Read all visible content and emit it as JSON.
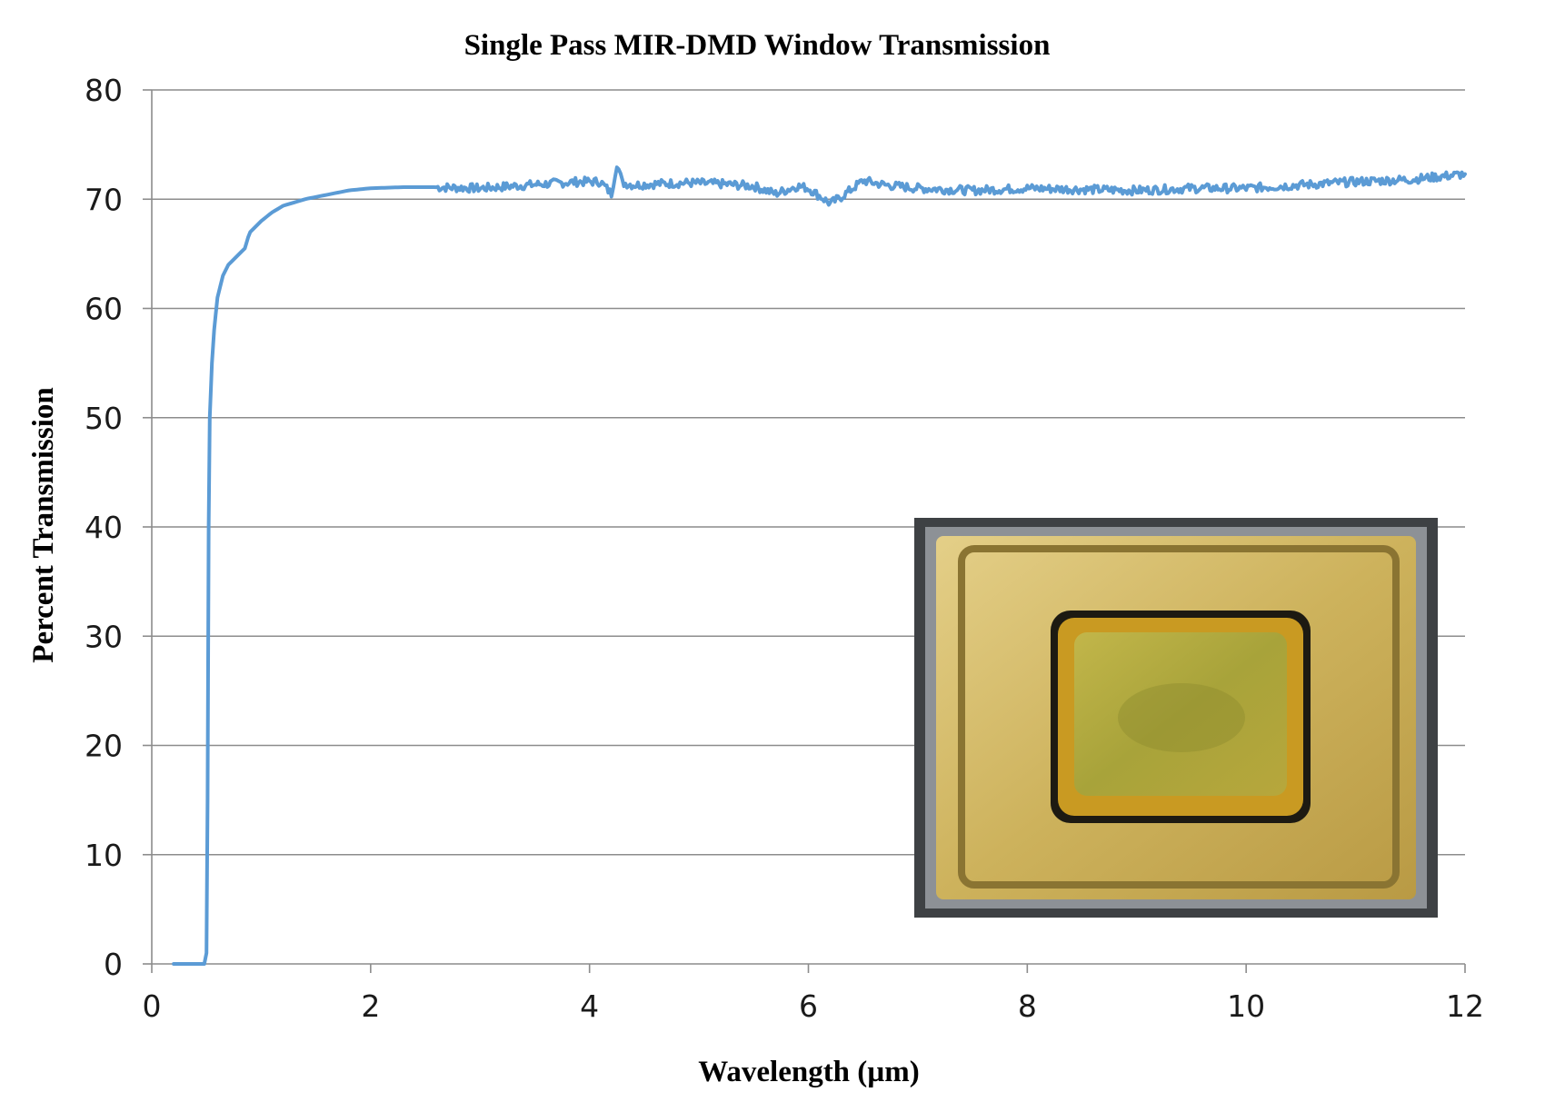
{
  "chart_data": {
    "type": "line",
    "title": "Single Pass MIR-DMD Window Transmission",
    "xlabel": "Wavelength (µm)",
    "ylabel": "Percent Transmission",
    "xlim": [
      0,
      12
    ],
    "ylim": [
      0,
      80
    ],
    "xticks": [
      0,
      2,
      4,
      6,
      8,
      10,
      12
    ],
    "yticks": [
      0,
      10,
      20,
      30,
      40,
      50,
      60,
      70,
      80
    ],
    "grid": "horizontal",
    "legend": "none",
    "series": [
      {
        "color": "#5b9bd5",
        "x": [
          0.2,
          0.48,
          0.5,
          0.51,
          0.52,
          0.53,
          0.55,
          0.57,
          0.6,
          0.65,
          0.7,
          0.8,
          0.85,
          0.88,
          0.9,
          1.0,
          1.1,
          1.2,
          1.4,
          1.6,
          1.8,
          2.0,
          2.3,
          2.6,
          3.0,
          3.3,
          3.6,
          3.9,
          4.1,
          4.2,
          4.25,
          4.3,
          4.4,
          4.6,
          4.9,
          5.2,
          5.5,
          5.7,
          5.9,
          6.0,
          6.2,
          6.3,
          6.5,
          6.7,
          7.0,
          7.5,
          8.0,
          8.5,
          9.0,
          9.5,
          10.0,
          10.5,
          11.0,
          11.5,
          11.8,
          12.0
        ],
        "y": [
          0,
          0,
          1,
          15,
          40,
          50,
          55,
          58,
          61,
          63,
          64,
          65,
          65.5,
          66.5,
          67,
          68,
          68.8,
          69.4,
          70.0,
          70.4,
          70.8,
          71.0,
          71.1,
          71.1,
          71.0,
          71.2,
          71.4,
          71.6,
          71.6,
          70.5,
          73.3,
          71.5,
          71.3,
          71.4,
          71.5,
          71.4,
          71.2,
          70.5,
          71.2,
          71.0,
          69.6,
          70.2,
          71.7,
          71.3,
          71.0,
          70.8,
          71.0,
          70.9,
          70.8,
          71.0,
          71.0,
          71.3,
          71.6,
          71.8,
          72.1,
          72.3
        ]
      }
    ]
  },
  "inset_photo": {
    "colors": {
      "frame": "#4a4d50",
      "gold": "#c9ad55",
      "gold_light": "#dcc57a",
      "window": "#b8ab3a"
    }
  }
}
